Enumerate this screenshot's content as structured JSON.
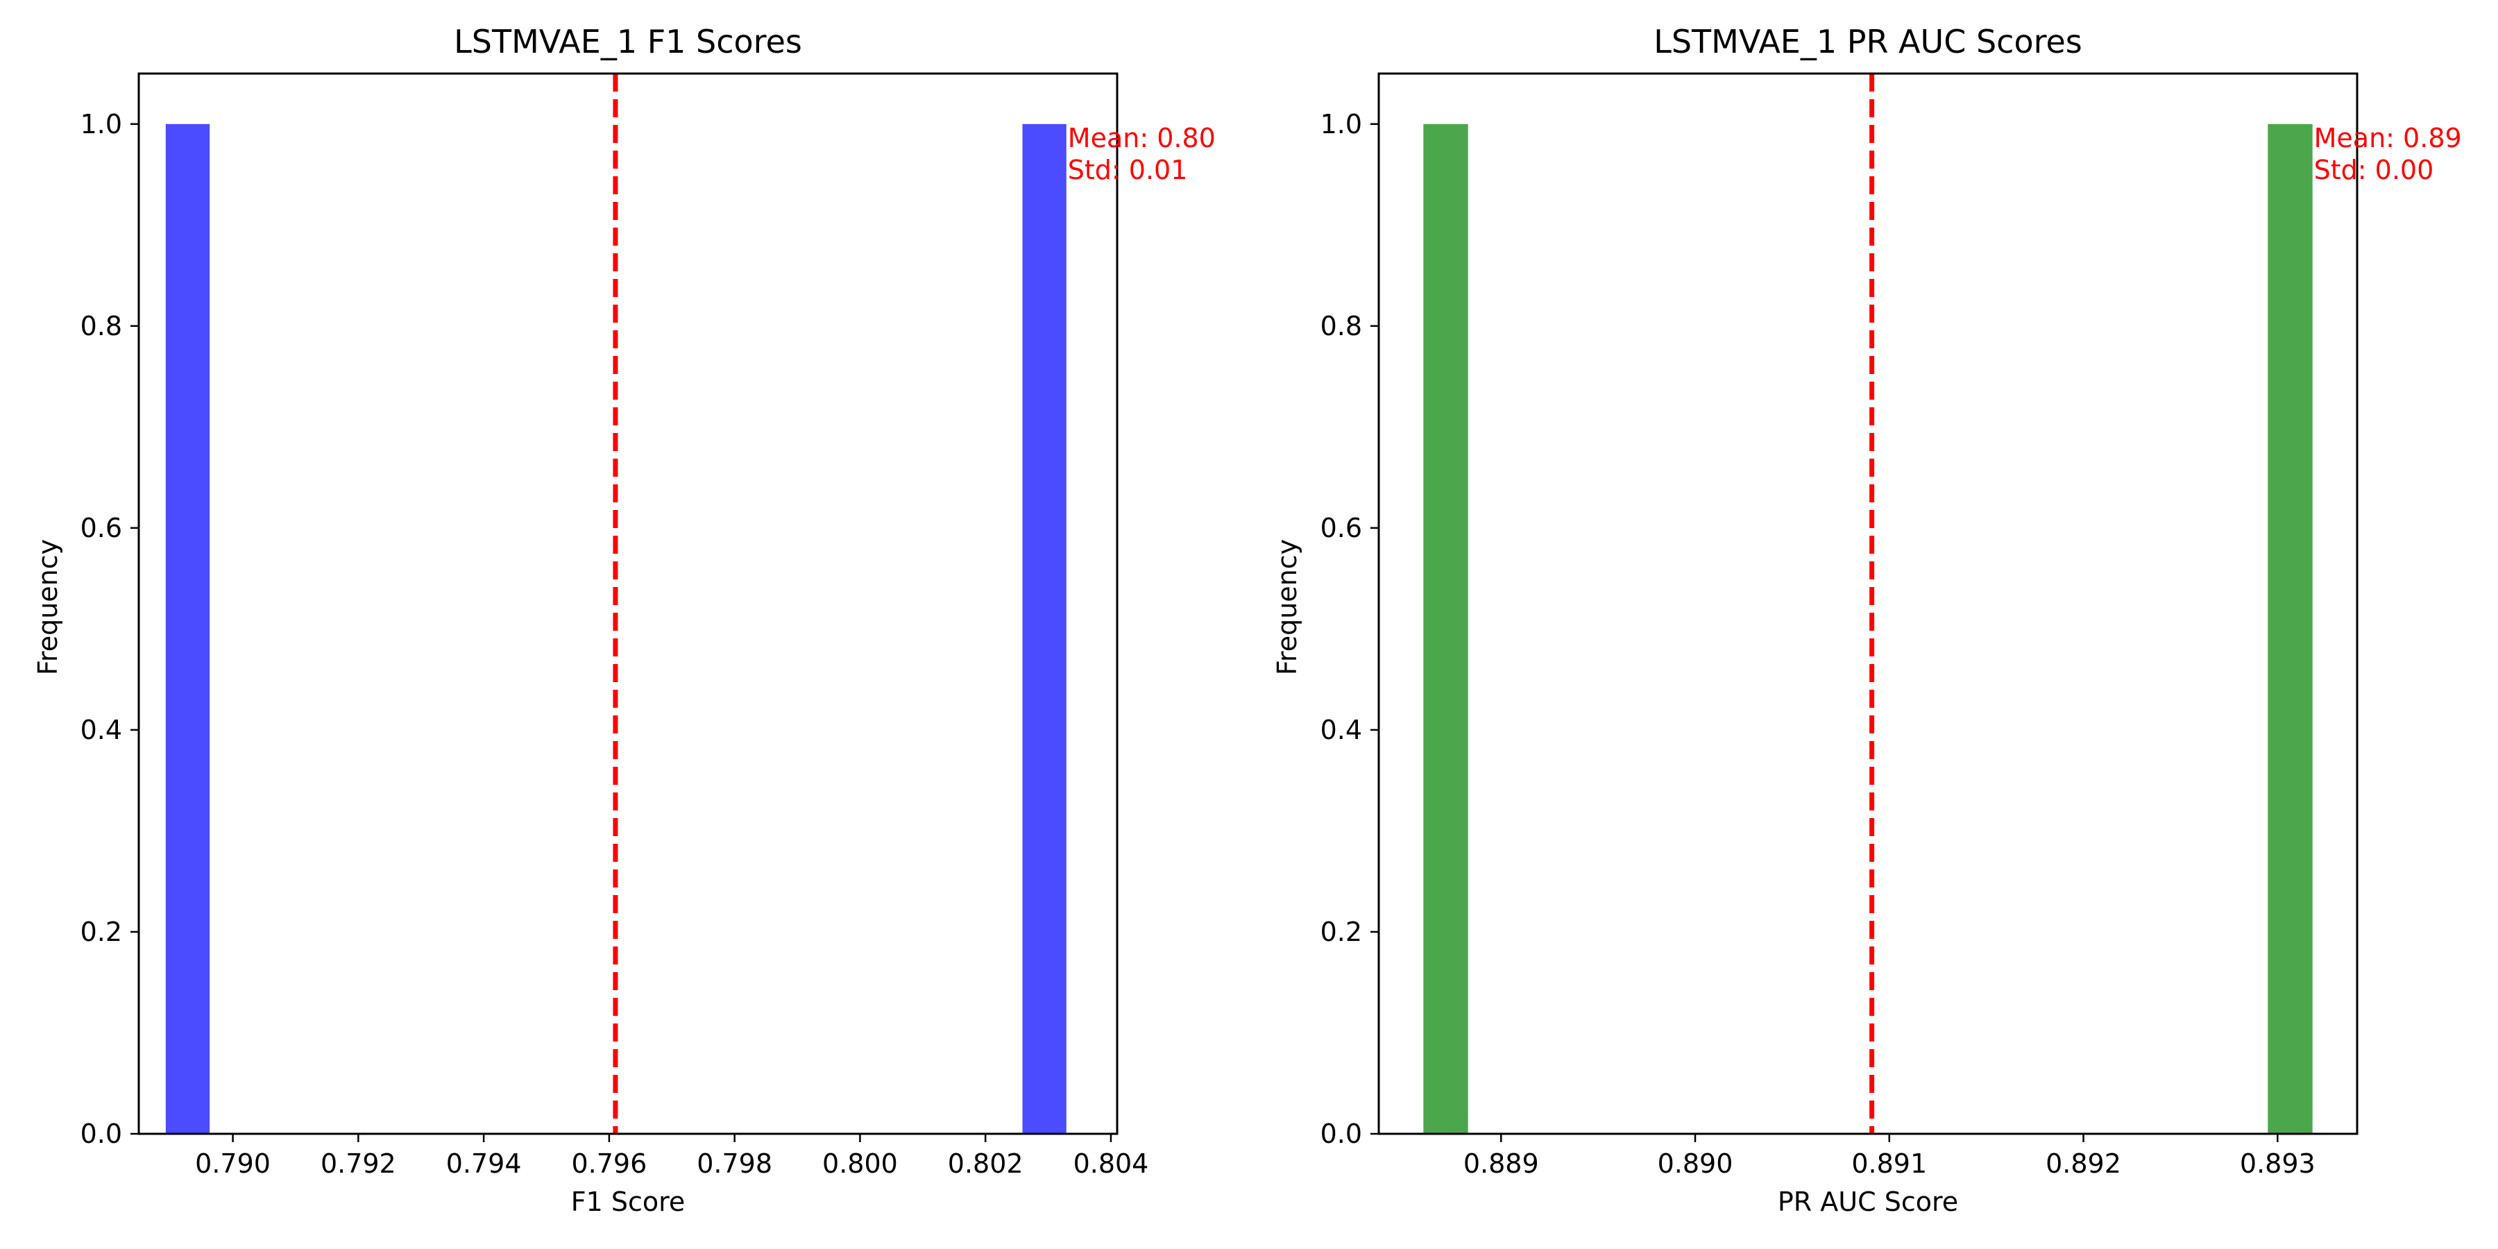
{
  "chart_data": [
    {
      "type": "bar",
      "title": "LSTMVAE_1 F1 Scores",
      "xlabel": "F1 Score",
      "ylabel": "Frequency",
      "bar_color": "#4b4bff",
      "xlim": [
        0.7885,
        0.8041
      ],
      "ylim": [
        0,
        1.05
      ],
      "xticks": [
        0.79,
        0.792,
        0.794,
        0.796,
        0.798,
        0.8,
        0.802,
        0.804
      ],
      "xtick_labels": [
        "0.790",
        "0.792",
        "0.794",
        "0.796",
        "0.798",
        "0.800",
        "0.802",
        "0.804"
      ],
      "yticks": [
        0.0,
        0.2,
        0.4,
        0.6,
        0.8,
        1.0
      ],
      "ytick_labels": [
        "0.0",
        "0.2",
        "0.4",
        "0.6",
        "0.8",
        "1.0"
      ],
      "bars": [
        {
          "x0": 0.78893,
          "x1": 0.78963,
          "value": 1
        },
        {
          "x0": 0.80259,
          "x1": 0.80329,
          "value": 1
        }
      ],
      "mean_line": {
        "value": 0.7961,
        "color": "#ff0000"
      },
      "annotation": {
        "lines": [
          "Mean: 0.80",
          "Std: 0.01"
        ],
        "color": "#ff0000"
      }
    },
    {
      "type": "bar",
      "title": "LSTMVAE_1 PR AUC Scores",
      "xlabel": "PR AUC Score",
      "ylabel": "Frequency",
      "bar_color": "#4ca64c",
      "xlim": [
        0.88837,
        0.89341
      ],
      "ylim": [
        0,
        1.05
      ],
      "xticks": [
        0.889,
        0.89,
        0.891,
        0.892,
        0.893
      ],
      "xtick_labels": [
        "0.889",
        "0.890",
        "0.891",
        "0.892",
        "0.893"
      ],
      "yticks": [
        0.0,
        0.2,
        0.4,
        0.6,
        0.8,
        1.0
      ],
      "ytick_labels": [
        "0.0",
        "0.2",
        "0.4",
        "0.6",
        "0.8",
        "1.0"
      ],
      "bars": [
        {
          "x0": 0.8886,
          "x1": 0.88883,
          "value": 1
        },
        {
          "x0": 0.89295,
          "x1": 0.89318,
          "value": 1
        }
      ],
      "mean_line": {
        "value": 0.89091,
        "color": "#ff0000"
      },
      "annotation": {
        "lines": [
          "Mean: 0.89",
          "Std: 0.00"
        ],
        "color": "#ff0000"
      }
    }
  ]
}
